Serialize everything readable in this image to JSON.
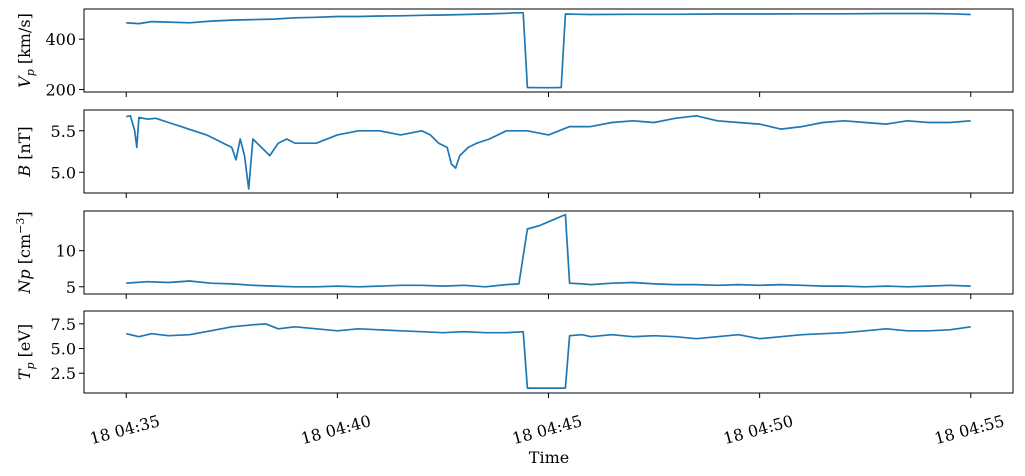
{
  "chart_data": {
    "type": "line",
    "xlabel": "Time",
    "x_ticks": [
      {
        "value": 0,
        "label": "18 04:35"
      },
      {
        "value": 5,
        "label": "18 04:40"
      },
      {
        "value": 10,
        "label": "18 04:45"
      },
      {
        "value": 15,
        "label": "18 04:50"
      },
      {
        "value": 20,
        "label": "18 04:55"
      }
    ],
    "x_unit": "minutes after 04:35",
    "xlim": [
      -1,
      21
    ],
    "color": "#1f77b4",
    "panels": [
      {
        "ylabel_base": "V",
        "ylabel_sub": "p",
        "ylabel_unit": " [km/s]",
        "ylim": [
          190,
          520
        ],
        "yticks": [
          {
            "value": 200,
            "label": "200"
          },
          {
            "value": 400,
            "label": "400"
          }
        ],
        "points": [
          [
            0,
            465
          ],
          [
            0.3,
            462
          ],
          [
            0.6,
            470
          ],
          [
            1,
            468
          ],
          [
            1.5,
            465
          ],
          [
            2,
            472
          ],
          [
            2.5,
            476
          ],
          [
            3,
            478
          ],
          [
            3.5,
            480
          ],
          [
            4,
            485
          ],
          [
            4.5,
            487
          ],
          [
            5,
            490
          ],
          [
            5.5,
            490
          ],
          [
            6,
            492
          ],
          [
            6.5,
            493
          ],
          [
            7,
            495
          ],
          [
            7.5,
            496
          ],
          [
            8,
            498
          ],
          [
            8.5,
            500
          ],
          [
            9,
            503
          ],
          [
            9.2,
            505
          ],
          [
            9.4,
            505
          ],
          [
            9.5,
            208
          ],
          [
            9.8,
            207
          ],
          [
            10.1,
            207
          ],
          [
            10.3,
            208
          ],
          [
            10.4,
            500
          ],
          [
            10.7,
            499
          ],
          [
            11,
            498
          ],
          [
            12,
            499
          ],
          [
            13,
            499
          ],
          [
            14,
            500
          ],
          [
            15,
            500
          ],
          [
            16,
            501
          ],
          [
            17,
            501
          ],
          [
            18,
            502
          ],
          [
            19,
            502
          ],
          [
            19.5,
            501
          ],
          [
            20,
            498
          ]
        ]
      },
      {
        "ylabel_base": "B",
        "ylabel_sub": "",
        "ylabel_unit": " [nT]",
        "ylim": [
          4.75,
          5.75
        ],
        "yticks": [
          {
            "value": 5.0,
            "label": "5.0"
          },
          {
            "value": 5.5,
            "label": "5.5"
          }
        ],
        "points": [
          [
            0,
            5.67
          ],
          [
            0.1,
            5.68
          ],
          [
            0.2,
            5.5
          ],
          [
            0.25,
            5.3
          ],
          [
            0.3,
            5.66
          ],
          [
            0.5,
            5.64
          ],
          [
            0.7,
            5.65
          ],
          [
            1,
            5.6
          ],
          [
            1.3,
            5.55
          ],
          [
            1.6,
            5.5
          ],
          [
            1.9,
            5.45
          ],
          [
            2.1,
            5.4
          ],
          [
            2.3,
            5.35
          ],
          [
            2.5,
            5.3
          ],
          [
            2.6,
            5.15
          ],
          [
            2.7,
            5.4
          ],
          [
            2.8,
            5.2
          ],
          [
            2.9,
            4.8
          ],
          [
            3,
            5.4
          ],
          [
            3.2,
            5.3
          ],
          [
            3.4,
            5.2
          ],
          [
            3.6,
            5.35
          ],
          [
            3.8,
            5.4
          ],
          [
            4,
            5.35
          ],
          [
            4.5,
            5.35
          ],
          [
            5,
            5.45
          ],
          [
            5.5,
            5.5
          ],
          [
            6,
            5.5
          ],
          [
            6.5,
            5.45
          ],
          [
            7,
            5.5
          ],
          [
            7.2,
            5.45
          ],
          [
            7.4,
            5.35
          ],
          [
            7.6,
            5.3
          ],
          [
            7.7,
            5.1
          ],
          [
            7.8,
            5.05
          ],
          [
            7.9,
            5.2
          ],
          [
            8,
            5.25
          ],
          [
            8.1,
            5.3
          ],
          [
            8.3,
            5.35
          ],
          [
            8.6,
            5.4
          ],
          [
            9,
            5.5
          ],
          [
            9.5,
            5.5
          ],
          [
            10,
            5.45
          ],
          [
            10.5,
            5.55
          ],
          [
            11,
            5.55
          ],
          [
            11.5,
            5.6
          ],
          [
            12,
            5.62
          ],
          [
            12.5,
            5.6
          ],
          [
            13,
            5.65
          ],
          [
            13.5,
            5.68
          ],
          [
            14,
            5.62
          ],
          [
            14.5,
            5.6
          ],
          [
            15,
            5.58
          ],
          [
            15.5,
            5.52
          ],
          [
            16,
            5.55
          ],
          [
            16.5,
            5.6
          ],
          [
            17,
            5.62
          ],
          [
            17.5,
            5.6
          ],
          [
            18,
            5.58
          ],
          [
            18.5,
            5.62
          ],
          [
            19,
            5.6
          ],
          [
            19.5,
            5.6
          ],
          [
            20,
            5.62
          ]
        ]
      },
      {
        "ylabel_base": "Np",
        "ylabel_sub": "",
        "ylabel_unit": " [cm",
        "ylabel_sup": "−3",
        "ylabel_unit_end": "]",
        "ylim": [
          4,
          15.5
        ],
        "yticks": [
          {
            "value": 5,
            "label": "5"
          },
          {
            "value": 10,
            "label": "10"
          }
        ],
        "points": [
          [
            0,
            5.5
          ],
          [
            0.5,
            5.7
          ],
          [
            1,
            5.6
          ],
          [
            1.5,
            5.8
          ],
          [
            2,
            5.5
          ],
          [
            2.5,
            5.4
          ],
          [
            3,
            5.2
          ],
          [
            3.5,
            5.1
          ],
          [
            4,
            5.0
          ],
          [
            4.5,
            5.0
          ],
          [
            5,
            5.1
          ],
          [
            5.5,
            5.0
          ],
          [
            6,
            5.1
          ],
          [
            6.5,
            5.2
          ],
          [
            7,
            5.2
          ],
          [
            7.5,
            5.1
          ],
          [
            8,
            5.2
          ],
          [
            8.5,
            5.0
          ],
          [
            9,
            5.3
          ],
          [
            9.3,
            5.4
          ],
          [
            9.5,
            13
          ],
          [
            9.8,
            13.5
          ],
          [
            10,
            14
          ],
          [
            10.2,
            14.5
          ],
          [
            10.4,
            15
          ],
          [
            10.5,
            5.5
          ],
          [
            10.8,
            5.4
          ],
          [
            11,
            5.3
          ],
          [
            11.5,
            5.5
          ],
          [
            12,
            5.6
          ],
          [
            12.5,
            5.4
          ],
          [
            13,
            5.3
          ],
          [
            13.5,
            5.3
          ],
          [
            14,
            5.2
          ],
          [
            14.5,
            5.3
          ],
          [
            15,
            5.2
          ],
          [
            15.5,
            5.3
          ],
          [
            16,
            5.2
          ],
          [
            16.5,
            5.1
          ],
          [
            17,
            5.1
          ],
          [
            17.5,
            5.0
          ],
          [
            18,
            5.1
          ],
          [
            18.5,
            5.0
          ],
          [
            19,
            5.1
          ],
          [
            19.5,
            5.2
          ],
          [
            20,
            5.1
          ]
        ]
      },
      {
        "ylabel_base": "T",
        "ylabel_sub": "p",
        "ylabel_unit": " [eV]",
        "ylim": [
          0.5,
          8.8
        ],
        "yticks": [
          {
            "value": 2.5,
            "label": "2.5"
          },
          {
            "value": 5.0,
            "label": "5.0"
          },
          {
            "value": 7.5,
            "label": "7.5"
          }
        ],
        "points": [
          [
            0,
            6.5
          ],
          [
            0.3,
            6.2
          ],
          [
            0.6,
            6.5
          ],
          [
            1,
            6.3
          ],
          [
            1.5,
            6.4
          ],
          [
            2,
            6.8
          ],
          [
            2.5,
            7.2
          ],
          [
            3,
            7.4
          ],
          [
            3.3,
            7.5
          ],
          [
            3.6,
            7.0
          ],
          [
            4,
            7.2
          ],
          [
            4.5,
            7.0
          ],
          [
            5,
            6.8
          ],
          [
            5.5,
            7.0
          ],
          [
            6,
            6.9
          ],
          [
            6.5,
            6.8
          ],
          [
            7,
            6.7
          ],
          [
            7.5,
            6.6
          ],
          [
            8,
            6.7
          ],
          [
            8.5,
            6.6
          ],
          [
            9,
            6.6
          ],
          [
            9.4,
            6.7
          ],
          [
            9.5,
            1.0
          ],
          [
            9.8,
            1.0
          ],
          [
            10.1,
            1.0
          ],
          [
            10.4,
            1.0
          ],
          [
            10.5,
            6.3
          ],
          [
            10.8,
            6.4
          ],
          [
            11,
            6.2
          ],
          [
            11.5,
            6.4
          ],
          [
            12,
            6.2
          ],
          [
            12.5,
            6.3
          ],
          [
            13,
            6.2
          ],
          [
            13.5,
            6.0
          ],
          [
            14,
            6.2
          ],
          [
            14.5,
            6.4
          ],
          [
            15,
            6.0
          ],
          [
            15.5,
            6.2
          ],
          [
            16,
            6.4
          ],
          [
            16.5,
            6.5
          ],
          [
            17,
            6.6
          ],
          [
            17.5,
            6.8
          ],
          [
            18,
            7.0
          ],
          [
            18.5,
            6.8
          ],
          [
            19,
            6.8
          ],
          [
            19.5,
            6.9
          ],
          [
            20,
            7.2
          ]
        ]
      }
    ]
  }
}
